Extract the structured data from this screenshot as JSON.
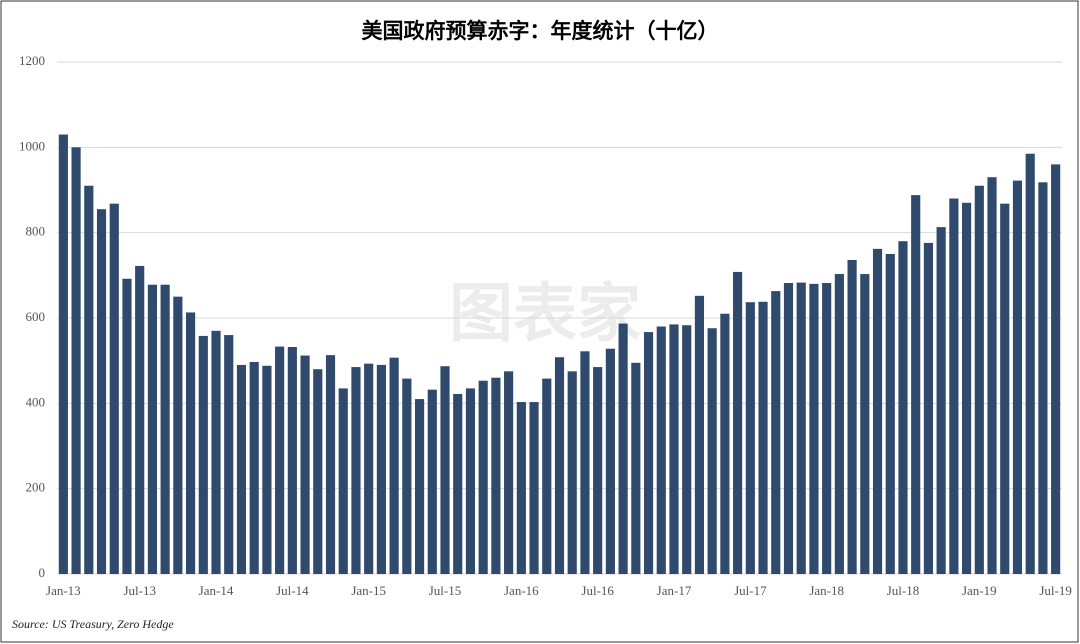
{
  "chart_data": {
    "type": "bar",
    "title": "美国政府预算赤字：年度统计（十亿）",
    "source": "Source: US Treasury, Zero Hedge",
    "watermark": "图表家",
    "categories": [
      "Jan-13",
      null,
      null,
      null,
      null,
      null,
      "Jul-13",
      null,
      null,
      null,
      null,
      null,
      "Jan-14",
      null,
      null,
      null,
      null,
      null,
      "Jul-14",
      null,
      null,
      null,
      null,
      null,
      "Jan-15",
      null,
      null,
      null,
      null,
      null,
      "Jul-15",
      null,
      null,
      null,
      null,
      null,
      "Jan-16",
      null,
      null,
      null,
      null,
      null,
      "Jul-16",
      null,
      null,
      null,
      null,
      null,
      "Jan-17",
      null,
      null,
      null,
      null,
      null,
      "Jul-17",
      null,
      null,
      null,
      null,
      null,
      "Jan-18",
      null,
      null,
      null,
      null,
      null,
      "Jul-18",
      null,
      null,
      null,
      null,
      null,
      "Jan-19",
      null,
      null,
      null,
      null,
      null,
      "Jul-19"
    ],
    "values": [
      1030,
      1000,
      910,
      855,
      868,
      692,
      722,
      678,
      678,
      650,
      613,
      558,
      570,
      560,
      490,
      497,
      488,
      533,
      532,
      512,
      480,
      513,
      435,
      485,
      493,
      490,
      507,
      458,
      410,
      432,
      487,
      422,
      435,
      453,
      460,
      475,
      403,
      403,
      458,
      508,
      475,
      522,
      485,
      528,
      587,
      495,
      567,
      580,
      585,
      583,
      652,
      576,
      610,
      708,
      637,
      638,
      663,
      682,
      683,
      680,
      682,
      703,
      736,
      703,
      762,
      750,
      780,
      888,
      776,
      813,
      880,
      870,
      910,
      930,
      868,
      922,
      985,
      918,
      960
    ],
    "color": "#2f4a6c",
    "ylim": [
      0,
      1200
    ],
    "yticks": [
      0,
      200,
      400,
      600,
      800,
      1000,
      1200
    ],
    "grid": true
  }
}
